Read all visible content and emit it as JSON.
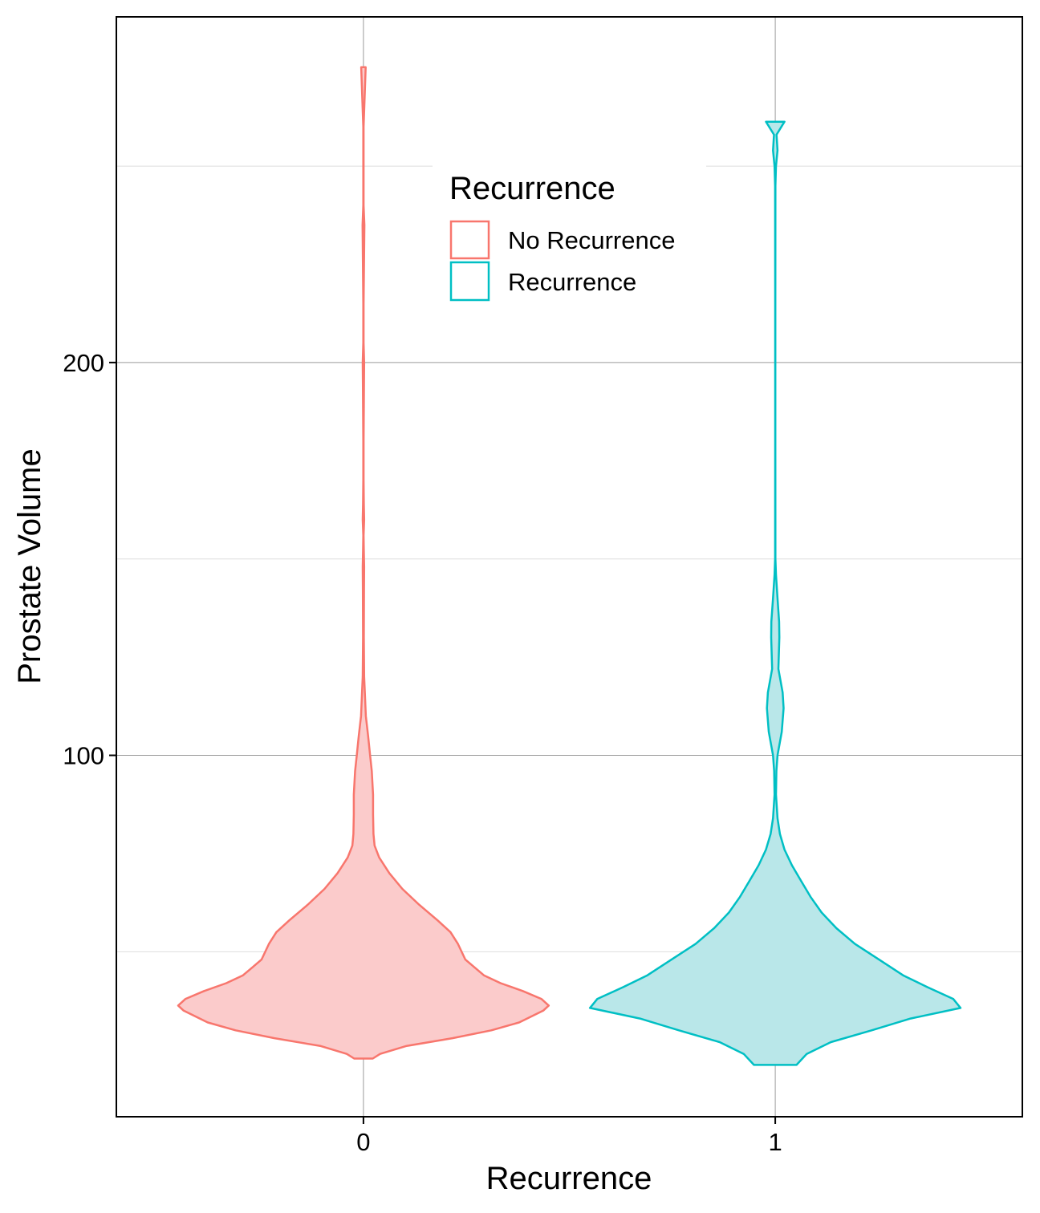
{
  "chart_data": {
    "type": "violin",
    "xlabel": "Recurrence",
    "ylabel": "Prostate Volume",
    "ylim": [
      8,
      288
    ],
    "yticks": [
      100,
      200
    ],
    "y_minor_gridlines": [
      50,
      150,
      250
    ],
    "grid": true,
    "categories": [
      "0",
      "1"
    ],
    "legend": {
      "title": "Recurrence",
      "placement": "top-center",
      "entries": [
        "No Recurrence",
        "Recurrence"
      ]
    },
    "series": [
      {
        "name": "No Recurrence",
        "category": "0",
        "color": "#F8766D",
        "fill": "#FBCBCB",
        "profile": [
          [
            22.8,
            0.05
          ],
          [
            24,
            0.09
          ],
          [
            26,
            0.23
          ],
          [
            28,
            0.48
          ],
          [
            30,
            0.69
          ],
          [
            32,
            0.84
          ],
          [
            35,
            0.97
          ],
          [
            36.3,
            1.0
          ],
          [
            38,
            0.96
          ],
          [
            40,
            0.86
          ],
          [
            42,
            0.74
          ],
          [
            44,
            0.65
          ],
          [
            46,
            0.6
          ],
          [
            48,
            0.55
          ],
          [
            52,
            0.51
          ],
          [
            55,
            0.47
          ],
          [
            58,
            0.4
          ],
          [
            62,
            0.3
          ],
          [
            66,
            0.21
          ],
          [
            70,
            0.14
          ],
          [
            74,
            0.085
          ],
          [
            77,
            0.06
          ],
          [
            80,
            0.054
          ],
          [
            85,
            0.052
          ],
          [
            90,
            0.052
          ],
          [
            96,
            0.045
          ],
          [
            100,
            0.036
          ],
          [
            105,
            0.025
          ],
          [
            110,
            0.013
          ],
          [
            120,
            0.004
          ],
          [
            130,
            0.002
          ],
          [
            142,
            0.003
          ],
          [
            148,
            0.004
          ],
          [
            152,
            0.002
          ],
          [
            156,
            0.001
          ],
          [
            160,
            0.004
          ],
          [
            164,
            0.002
          ],
          [
            170,
            0.001
          ],
          [
            180,
            0.001
          ],
          [
            195,
            0.003
          ],
          [
            200,
            0.004
          ],
          [
            205,
            0.001
          ],
          [
            215,
            0.001
          ],
          [
            235,
            0.005
          ],
          [
            240,
            0.001
          ],
          [
            260,
            0.001
          ],
          [
            275.2,
            0.012
          ]
        ]
      },
      {
        "name": "Recurrence",
        "category": "1",
        "color": "#00BFC4",
        "fill": "#B9E7E9",
        "profile": [
          [
            21.2,
            0.115
          ],
          [
            24,
            0.17
          ],
          [
            27,
            0.3
          ],
          [
            30,
            0.52
          ],
          [
            33,
            0.73
          ],
          [
            35.7,
            1.0
          ],
          [
            38,
            0.96
          ],
          [
            41,
            0.82
          ],
          [
            44,
            0.69
          ],
          [
            48,
            0.56
          ],
          [
            52,
            0.43
          ],
          [
            56,
            0.33
          ],
          [
            60,
            0.25
          ],
          [
            64,
            0.19
          ],
          [
            68,
            0.14
          ],
          [
            72,
            0.09
          ],
          [
            76,
            0.05
          ],
          [
            80,
            0.025
          ],
          [
            84,
            0.012
          ],
          [
            90,
            0.004
          ],
          [
            96,
            0.006
          ],
          [
            100,
            0.012
          ],
          [
            106,
            0.035
          ],
          [
            112,
            0.045
          ],
          [
            116,
            0.04
          ],
          [
            122,
            0.017
          ],
          [
            130,
            0.022
          ],
          [
            134,
            0.021
          ],
          [
            140,
            0.012
          ],
          [
            146,
            0.004
          ],
          [
            150,
            0.001
          ],
          [
            180,
            0.0006
          ],
          [
            215,
            0.0006
          ],
          [
            245,
            0.001
          ],
          [
            250,
            0.004
          ],
          [
            254,
            0.012
          ],
          [
            258,
            0.007
          ],
          [
            261.3,
            0.05
          ]
        ]
      }
    ]
  }
}
